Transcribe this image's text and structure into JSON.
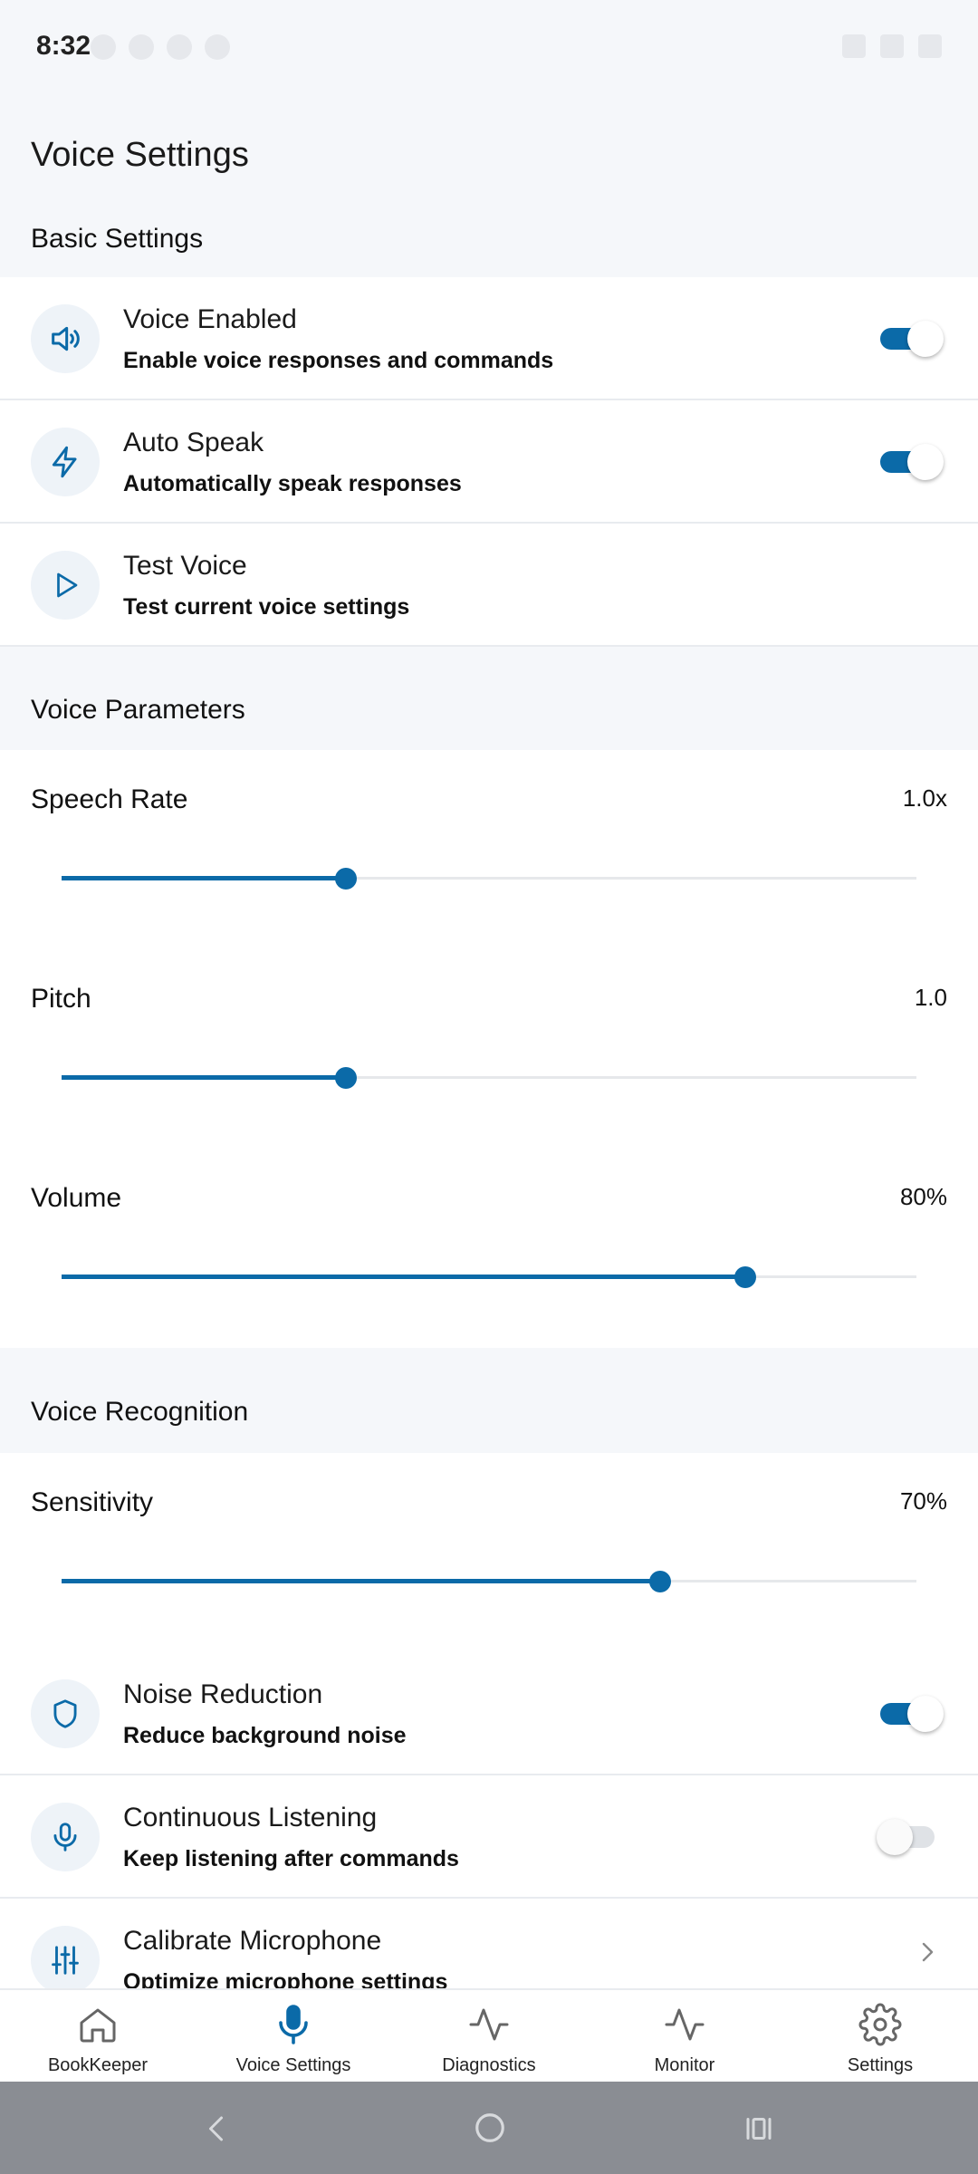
{
  "status": {
    "time": "8:32"
  },
  "page": {
    "title": "Voice Settings"
  },
  "sections": {
    "basic": "Basic Settings",
    "parameters": "Voice Parameters",
    "recognition": "Voice Recognition"
  },
  "basic": {
    "voice_enabled": {
      "title": "Voice Enabled",
      "subtitle": "Enable voice responses and commands",
      "on": true,
      "icon": "speaker-icon"
    },
    "auto_speak": {
      "title": "Auto Speak",
      "subtitle": "Automatically speak responses",
      "on": true,
      "icon": "lightning-icon"
    },
    "test_voice": {
      "title": "Test Voice",
      "subtitle": "Test current voice settings",
      "icon": "play-icon"
    }
  },
  "parameters": {
    "speech_rate": {
      "label": "Speech Rate",
      "value": "1.0x",
      "fraction": 0.333
    },
    "pitch": {
      "label": "Pitch",
      "value": "1.0",
      "fraction": 0.333
    },
    "volume": {
      "label": "Volume",
      "value": "80%",
      "fraction": 0.8
    }
  },
  "recognition": {
    "sensitivity": {
      "label": "Sensitivity",
      "value": "70%",
      "fraction": 0.7
    },
    "noise_reduction": {
      "title": "Noise Reduction",
      "subtitle": "Reduce background noise",
      "on": true,
      "icon": "shield-icon"
    },
    "continuous_listening": {
      "title": "Continuous Listening",
      "subtitle": "Keep listening after commands",
      "on": false,
      "icon": "microphone-icon"
    },
    "calibrate": {
      "title": "Calibrate Microphone",
      "subtitle": "Optimize microphone settings",
      "icon": "sliders-icon"
    }
  },
  "bottom_nav": {
    "items": [
      {
        "label": "BookKeeper",
        "icon": "home-icon"
      },
      {
        "label": "Voice Settings",
        "icon": "microphone-icon",
        "active": true
      },
      {
        "label": "Diagnostics",
        "icon": "activity-icon"
      },
      {
        "label": "Monitor",
        "icon": "activity-icon"
      },
      {
        "label": "Settings",
        "icon": "gear-icon"
      }
    ]
  },
  "colors": {
    "accent": "#0b6aa8",
    "background": "#f5f7fa",
    "icon_bg": "#eef3f8"
  }
}
